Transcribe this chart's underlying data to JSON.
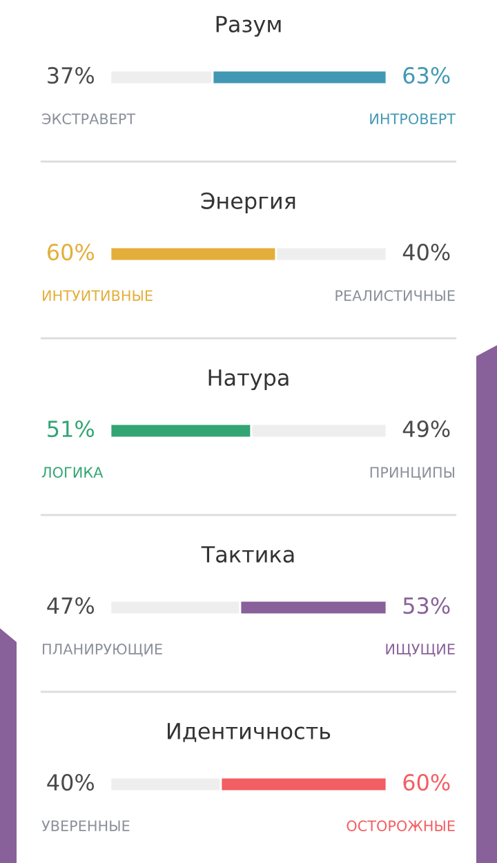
{
  "chart_data": [
    {
      "type": "bar",
      "orientation": "horizontal",
      "stacked": true,
      "title": "Разум",
      "categories": [
        null
      ],
      "xlim": [
        0,
        100
      ],
      "series": [
        {
          "name": "ЭКСТРАВЕРТ",
          "color": "#eeeeee",
          "values": [
            37
          ],
          "value_labels": [
            "37%"
          ]
        },
        {
          "name": "ИНТРОВЕРТ",
          "color": "#4298b4",
          "values": [
            63
          ],
          "value_labels": [
            "63%"
          ]
        }
      ]
    },
    {
      "type": "bar",
      "orientation": "horizontal",
      "stacked": true,
      "title": "Энергия",
      "categories": [
        null
      ],
      "xlim": [
        0,
        100
      ],
      "series": [
        {
          "name": "ИНТУИТИВНЫЕ",
          "color": "#e4ae3a",
          "values": [
            60
          ],
          "value_labels": [
            "60%"
          ]
        },
        {
          "name": "РЕАЛИСТИЧНЫЕ",
          "color": "#eeeeee",
          "values": [
            40
          ],
          "value_labels": [
            "40%"
          ]
        }
      ]
    },
    {
      "type": "bar",
      "orientation": "horizontal",
      "stacked": true,
      "title": "Натура",
      "categories": [
        null
      ],
      "xlim": [
        0,
        100
      ],
      "series": [
        {
          "name": "ЛОГИКА",
          "color": "#33a474",
          "values": [
            51
          ],
          "value_labels": [
            "51%"
          ]
        },
        {
          "name": "ПРИНЦИПЫ",
          "color": "#eeeeee",
          "values": [
            49
          ],
          "value_labels": [
            "49%"
          ]
        }
      ]
    },
    {
      "type": "bar",
      "orientation": "horizontal",
      "stacked": true,
      "title": "Тактика",
      "categories": [
        null
      ],
      "xlim": [
        0,
        100
      ],
      "series": [
        {
          "name": "ПЛАНИРУЮЩИЕ",
          "color": "#eeeeee",
          "values": [
            47
          ],
          "value_labels": [
            "47%"
          ]
        },
        {
          "name": "ИЩУЩИЕ",
          "color": "#88619a",
          "values": [
            53
          ],
          "value_labels": [
            "53%"
          ]
        }
      ]
    },
    {
      "type": "bar",
      "orientation": "horizontal",
      "stacked": true,
      "title": "Идентичность",
      "categories": [
        null
      ],
      "xlim": [
        0,
        100
      ],
      "series": [
        {
          "name": "УВЕРЕННЫЕ",
          "color": "#eeeeee",
          "values": [
            40
          ],
          "value_labels": [
            "40%"
          ]
        },
        {
          "name": "ОСТОРОЖНЫЕ",
          "color": "#f25e62",
          "values": [
            60
          ],
          "value_labels": [
            "60%"
          ]
        }
      ]
    }
  ]
}
